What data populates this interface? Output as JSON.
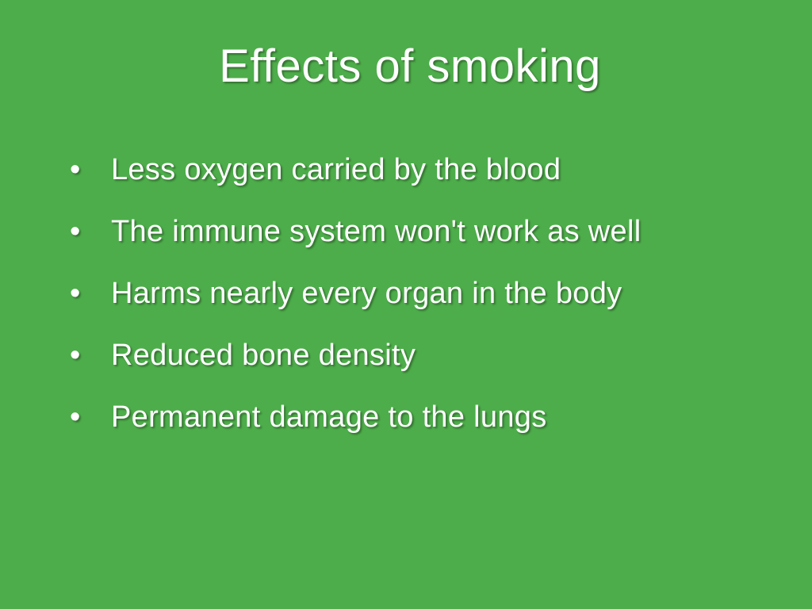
{
  "slide": {
    "background_color": "#4dad4a",
    "text_color": "#ffffff",
    "title": "Effects of smoking",
    "title_fontsize": 58,
    "bullet_fontsize": 38,
    "bullet_line_height": 78,
    "bullets": [
      "Less oxygen carried by the blood",
      "The immune system won't work as well",
      "Harms nearly every organ in the body",
      "Reduced bone density",
      "Permanent damage to the lungs"
    ]
  }
}
